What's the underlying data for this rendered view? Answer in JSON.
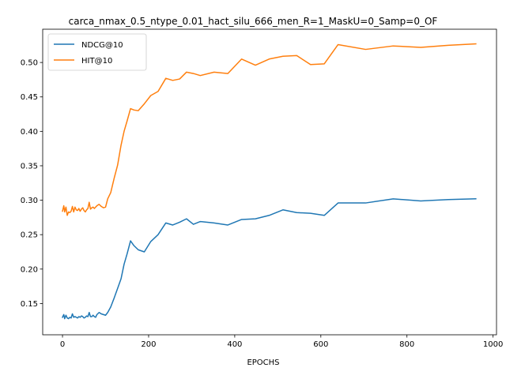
{
  "chart_data": {
    "type": "line",
    "title": "carca_nmax_0.5_ntype_0.01_hact_silu_666_men_R=1_MaskU=0_Samp=0_OF",
    "xlabel": "EPOCHS",
    "ylabel": "",
    "xlim": [
      -46,
      1008
    ],
    "ylim": [
      0.1046,
      0.5483
    ],
    "xticks": [
      0,
      200,
      400,
      600,
      800,
      1000
    ],
    "yticks": [
      0.15,
      0.2,
      0.25,
      0.3,
      0.35,
      0.4,
      0.45,
      0.5
    ],
    "ytick_labels": [
      "0.15",
      "0.20",
      "0.25",
      "0.30",
      "0.35",
      "0.40",
      "0.45",
      "0.50"
    ],
    "grid": false,
    "legend_position": "top-left",
    "series": [
      {
        "name": "NDCG@10",
        "color": "#1f77b4",
        "x": [
          0,
          3,
          5,
          8,
          11,
          14,
          17,
          20,
          23,
          26,
          29,
          32,
          35,
          38,
          41,
          44,
          47,
          50,
          53,
          56,
          59,
          62,
          65,
          68,
          71,
          74,
          77,
          80,
          85,
          90,
          95,
          100,
          105,
          112,
          120,
          128,
          136,
          143,
          150,
          158,
          166,
          176,
          190,
          205,
          222,
          240,
          256,
          272,
          288,
          304,
          320,
          352,
          384,
          416,
          448,
          480,
          512,
          544,
          576,
          608,
          640,
          704,
          768,
          832,
          896,
          960
        ],
        "y": [
          0.13,
          0.134,
          0.128,
          0.133,
          0.129,
          0.128,
          0.13,
          0.129,
          0.135,
          0.13,
          0.131,
          0.13,
          0.129,
          0.131,
          0.13,
          0.132,
          0.131,
          0.129,
          0.13,
          0.132,
          0.131,
          0.137,
          0.131,
          0.131,
          0.133,
          0.131,
          0.13,
          0.134,
          0.137,
          0.135,
          0.134,
          0.133,
          0.137,
          0.145,
          0.158,
          0.172,
          0.186,
          0.207,
          0.222,
          0.241,
          0.234,
          0.228,
          0.225,
          0.24,
          0.25,
          0.267,
          0.264,
          0.268,
          0.273,
          0.265,
          0.269,
          0.267,
          0.264,
          0.272,
          0.273,
          0.278,
          0.286,
          0.282,
          0.281,
          0.278,
          0.296,
          0.296,
          0.302,
          0.299,
          0.301,
          0.302
        ]
      },
      {
        "name": "HIT@10",
        "color": "#ff7f0e",
        "x": [
          0,
          3,
          5,
          8,
          11,
          14,
          17,
          20,
          23,
          26,
          29,
          32,
          35,
          38,
          41,
          44,
          47,
          50,
          53,
          56,
          59,
          62,
          65,
          68,
          71,
          74,
          77,
          80,
          85,
          90,
          95,
          100,
          105,
          112,
          120,
          128,
          136,
          143,
          150,
          158,
          166,
          176,
          190,
          205,
          222,
          240,
          256,
          272,
          288,
          304,
          320,
          352,
          384,
          416,
          448,
          480,
          512,
          544,
          576,
          608,
          640,
          704,
          768,
          832,
          896,
          960
        ],
        "y": [
          0.284,
          0.292,
          0.283,
          0.29,
          0.278,
          0.283,
          0.282,
          0.284,
          0.291,
          0.283,
          0.29,
          0.286,
          0.285,
          0.288,
          0.284,
          0.287,
          0.289,
          0.285,
          0.283,
          0.286,
          0.288,
          0.297,
          0.287,
          0.289,
          0.29,
          0.288,
          0.29,
          0.292,
          0.294,
          0.291,
          0.289,
          0.29,
          0.302,
          0.311,
          0.332,
          0.351,
          0.38,
          0.4,
          0.415,
          0.433,
          0.431,
          0.43,
          0.44,
          0.452,
          0.458,
          0.477,
          0.474,
          0.476,
          0.486,
          0.484,
          0.481,
          0.486,
          0.484,
          0.505,
          0.496,
          0.505,
          0.509,
          0.51,
          0.497,
          0.498,
          0.526,
          0.519,
          0.524,
          0.522,
          0.525,
          0.527
        ]
      }
    ]
  }
}
